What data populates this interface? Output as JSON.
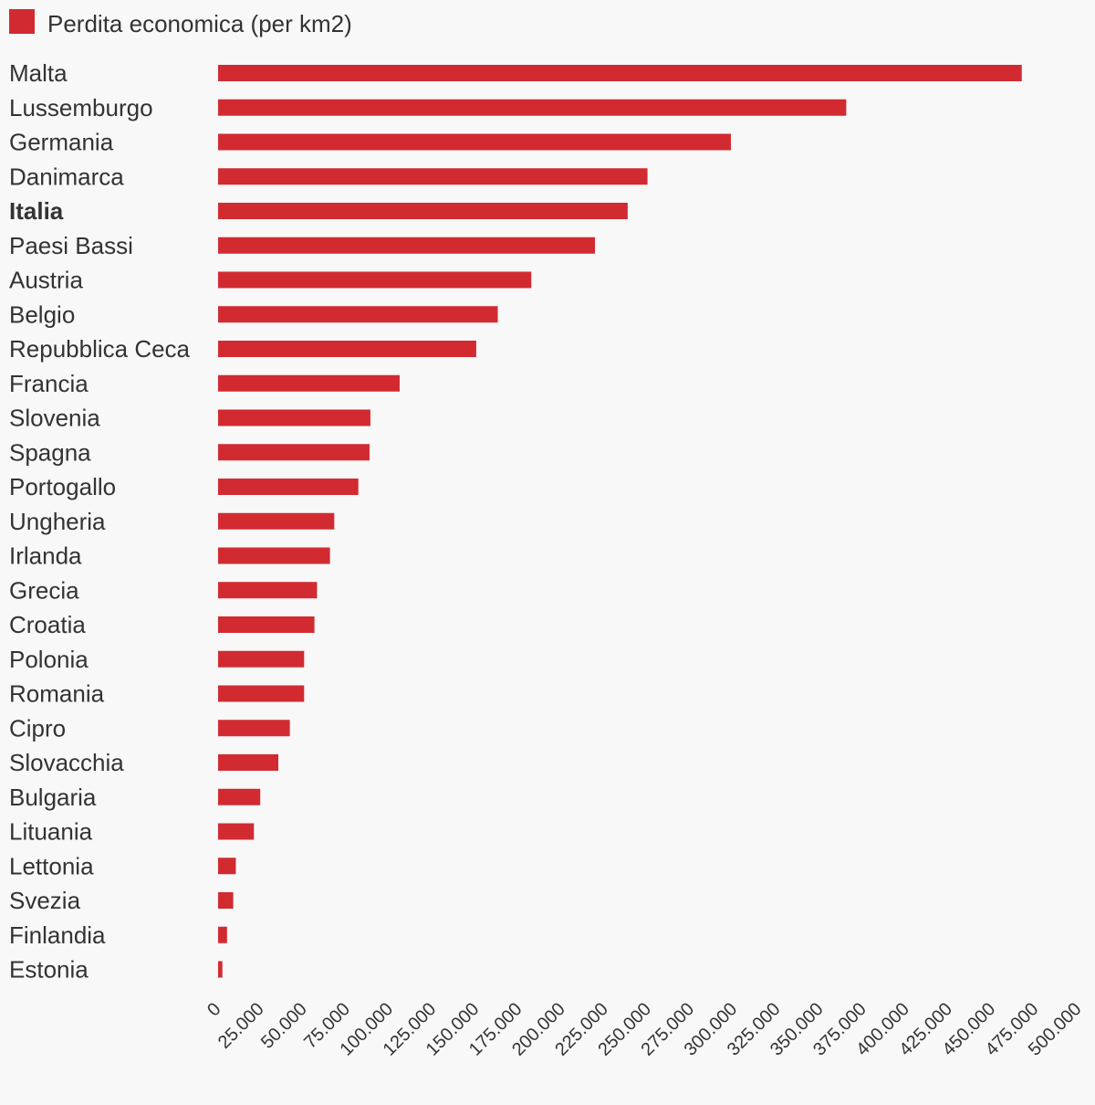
{
  "chart_data": {
    "type": "bar",
    "orientation": "horizontal",
    "legend": {
      "label": "Perdita economica (per km2)",
      "position": "top-left"
    },
    "series": [
      {
        "name": "Perdita economica (per km2)",
        "color": "#d12b31",
        "values": [
          467000,
          365000,
          298000,
          249500,
          238000,
          219000,
          182000,
          162500,
          150000,
          105500,
          88500,
          88000,
          81500,
          67500,
          65000,
          57500,
          56000,
          50000,
          50000,
          41700,
          35000,
          24500,
          20800,
          10300,
          8800,
          5200,
          2500
        ]
      }
    ],
    "categories": [
      "Malta",
      "Lussemburgo",
      "Germania",
      "Danimarca",
      "Italia",
      "Paesi Bassi",
      "Austria",
      "Belgio",
      "Repubblica Ceca",
      "Francia",
      "Slovenia",
      "Spagna",
      "Portogallo",
      "Ungheria",
      "Irlanda",
      "Grecia",
      "Croatia",
      "Polonia",
      "Romania",
      "Cipro",
      "Slovacchia",
      "Bulgaria",
      "Lituania",
      "Lettonia",
      "Svezia",
      "Finlandia",
      "Estonia"
    ],
    "highlight": "Italia",
    "xlim": [
      0,
      500000
    ],
    "x_ticks": [
      "0",
      "25.000",
      "50.000",
      "75.000",
      "100.000",
      "125.000",
      "150.000",
      "175.000",
      "200.000",
      "225.000",
      "250.000",
      "275.000",
      "300.000",
      "325.000",
      "350.000",
      "375.000",
      "400.000",
      "425.000",
      "450.000",
      "475.000",
      "500.000"
    ],
    "grid": false
  }
}
